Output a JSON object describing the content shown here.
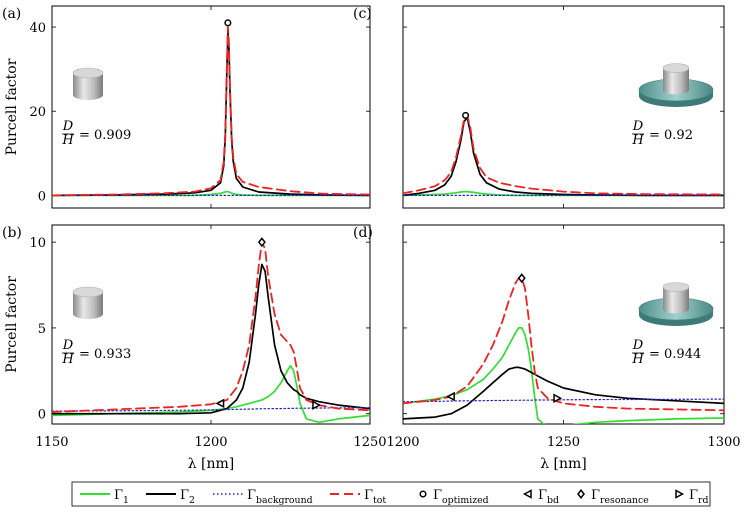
{
  "colors": {
    "gamma1": "#33dd33",
    "gamma2": "#000000",
    "background": "#2222cc",
    "tot": "#ee2222",
    "substrate": "#7fb8b4",
    "pillar": "#cfcfcf"
  },
  "chart_data": [
    {
      "id": "a",
      "type": "line",
      "panel_label": "(a)",
      "ylabel": "Purcell factor",
      "xlabel": "",
      "xlim": [
        1150,
        1250
      ],
      "ylim": [
        -3,
        45
      ],
      "yticks": [
        "0",
        "20",
        "40"
      ],
      "xticks": [],
      "ratio_label": "= 0.909",
      "ratio_frac": {
        "num": "D",
        "den": "H"
      },
      "icon": "cylinder-icon",
      "x": [
        1150,
        1170,
        1185,
        1195,
        1200,
        1203,
        1204,
        1204.5,
        1205,
        1205.3,
        1205.6,
        1206,
        1206.5,
        1207,
        1208,
        1210,
        1215,
        1225,
        1235,
        1250
      ],
      "series": [
        {
          "name": "Γ1",
          "values": [
            0,
            0,
            0,
            0,
            0.2,
            0.5,
            0.7,
            0.8,
            0.9,
            0.9,
            0.8,
            0.7,
            0.5,
            0.4,
            0.2,
            0.1,
            0,
            0,
            0,
            0
          ]
        },
        {
          "name": "Γ2",
          "values": [
            0,
            0.1,
            0.3,
            0.6,
            1.2,
            3,
            7,
            14,
            30,
            39,
            36,
            24,
            13,
            8,
            4,
            2,
            0.8,
            0.3,
            0.1,
            0
          ]
        },
        {
          "name": "Γbackground",
          "values": [
            0,
            0,
            0,
            0,
            0,
            0,
            0,
            0,
            0,
            0,
            0,
            0,
            0,
            0,
            0,
            0,
            0,
            0,
            0,
            0
          ]
        },
        {
          "name": "Γtot",
          "values": [
            0,
            0.2,
            0.5,
            0.9,
            1.7,
            3.6,
            8,
            15,
            31,
            40,
            37,
            25,
            14,
            9,
            5,
            3.2,
            2,
            1,
            0.4,
            0.2
          ]
        }
      ],
      "markers": [
        {
          "name": "Γoptimized",
          "x": 1205.3,
          "y": 41
        }
      ]
    },
    {
      "id": "b",
      "type": "line",
      "panel_label": "(b)",
      "ylabel": "Purcell factor",
      "xlabel": "λ [nm]",
      "xlim": [
        1150,
        1250
      ],
      "ylim": [
        -0.6,
        11
      ],
      "yticks": [
        "0",
        "5",
        "10"
      ],
      "xticks": [
        "1150",
        "1200",
        "1250"
      ],
      "ratio_label": "= 0.933",
      "ratio_frac": {
        "num": "D",
        "den": "H"
      },
      "icon": "cylinder-icon",
      "x": [
        1150,
        1170,
        1190,
        1200,
        1205,
        1208,
        1210,
        1212,
        1214,
        1215,
        1216,
        1217,
        1218,
        1220,
        1222,
        1224,
        1225,
        1226,
        1227,
        1228,
        1230,
        1234,
        1240,
        1250
      ],
      "series": [
        {
          "name": "Γ1",
          "values": [
            -0.1,
            0,
            0.1,
            0.2,
            0.3,
            0.4,
            0.5,
            0.6,
            0.7,
            0.75,
            0.8,
            0.9,
            1,
            1.3,
            1.8,
            2.5,
            2.8,
            2.5,
            1.6,
            0.6,
            -0.3,
            -0.5,
            -0.3,
            -0.1
          ]
        },
        {
          "name": "Γ2",
          "values": [
            0,
            0,
            0,
            0.05,
            0.3,
            0.8,
            1.5,
            3,
            5.8,
            7.5,
            8.7,
            8.3,
            6.8,
            4,
            2.5,
            1.8,
            1.6,
            1.4,
            1.3,
            1.1,
            0.9,
            0.7,
            0.5,
            0.3
          ]
        },
        {
          "name": "Γbackground",
          "values": [
            0.15,
            0.17,
            0.2,
            0.22,
            0.24,
            0.25,
            0.26,
            0.27,
            0.28,
            0.28,
            0.29,
            0.29,
            0.29,
            0.3,
            0.3,
            0.31,
            0.31,
            0.31,
            0.32,
            0.32,
            0.32,
            0.33,
            0.34,
            0.35
          ]
        },
        {
          "name": "Γtot",
          "values": [
            0.1,
            0.25,
            0.4,
            0.55,
            0.8,
            1.5,
            2.5,
            4,
            6.8,
            8.6,
            10,
            9.6,
            8,
            5.8,
            4.6,
            4.2,
            4,
            3.6,
            2.6,
            1.5,
            0.8,
            0.5,
            0.3,
            0.2
          ]
        }
      ],
      "markers": [
        {
          "name": "Γbd",
          "x": 1203,
          "y": 0.6
        },
        {
          "name": "Γresonance",
          "x": 1216,
          "y": 10
        },
        {
          "name": "Γrd",
          "x": 1233,
          "y": 0.5
        }
      ]
    },
    {
      "id": "c",
      "type": "line",
      "panel_label": "(c)",
      "ylabel": "",
      "xlabel": "",
      "xlim": [
        1200,
        1300
      ],
      "ylim": [
        -3,
        45
      ],
      "yticks": [],
      "xticks": [],
      "ratio_label": "= 0.92",
      "ratio_frac": {
        "num": "D",
        "den": "H"
      },
      "icon": "pillar-on-substrate-icon",
      "x": [
        1200,
        1205,
        1210,
        1213,
        1215,
        1216.5,
        1218,
        1219,
        1220,
        1221,
        1222,
        1224,
        1226,
        1230,
        1235,
        1240,
        1250,
        1260,
        1275,
        1300
      ],
      "series": [
        {
          "name": "Γ1",
          "values": [
            0,
            0.1,
            0.2,
            0.3,
            0.5,
            0.6,
            0.8,
            0.9,
            0.9,
            0.8,
            0.7,
            0.5,
            0.3,
            0.1,
            0,
            0,
            0,
            0,
            0,
            0
          ]
        },
        {
          "name": "Γ2",
          "values": [
            0,
            0.5,
            1.2,
            2.5,
            4.5,
            8,
            13,
            17.5,
            18.5,
            15,
            10,
            5,
            3,
            1.5,
            0.8,
            0.5,
            0.2,
            0.1,
            0,
            0
          ]
        },
        {
          "name": "Γbackground",
          "values": [
            0,
            0,
            0,
            0,
            0,
            0,
            0,
            0,
            0,
            0,
            0,
            0,
            0,
            0,
            0,
            0,
            0,
            0,
            0,
            0
          ]
        },
        {
          "name": "Γtot",
          "values": [
            0.5,
            1.2,
            2.2,
            3.6,
            5.5,
            9,
            14,
            18,
            19,
            16,
            11,
            6.5,
            4.3,
            3,
            2.2,
            1.6,
            0.9,
            0.5,
            0.3,
            0.2
          ]
        }
      ],
      "markers": [
        {
          "name": "Γoptimized",
          "x": 1219.5,
          "y": 19
        }
      ]
    },
    {
      "id": "d",
      "type": "line",
      "panel_label": "(d)",
      "ylabel": "",
      "xlabel": "λ [nm]",
      "xlim": [
        1200,
        1300
      ],
      "ylim": [
        -0.6,
        11
      ],
      "yticks": [],
      "xticks": [
        "1200",
        "1250",
        "1300"
      ],
      "ratio_label": "= 0.944",
      "ratio_frac": {
        "num": "D",
        "den": "H"
      },
      "icon": "pillar-on-substrate-icon",
      "x": [
        1200,
        1210,
        1215,
        1220,
        1225,
        1228,
        1231,
        1233,
        1235,
        1236,
        1237,
        1238,
        1239,
        1240,
        1241,
        1242,
        1245,
        1250,
        1260,
        1270,
        1285,
        1300
      ],
      "series": [
        {
          "name": "Γ1",
          "values": [
            0.6,
            0.85,
            1.05,
            1.4,
            2,
            2.6,
            3.3,
            4,
            4.7,
            5,
            5,
            4.6,
            3.8,
            2.6,
            1,
            -0.3,
            -0.8,
            -0.7,
            -0.5,
            -0.4,
            -0.3,
            -0.25
          ]
        },
        {
          "name": "Γ2",
          "values": [
            -0.3,
            -0.2,
            0,
            0.5,
            1.3,
            1.8,
            2.3,
            2.6,
            2.7,
            2.7,
            2.65,
            2.6,
            2.5,
            2.4,
            2.3,
            2.2,
            1.9,
            1.5,
            1.1,
            0.9,
            0.75,
            0.6
          ]
        },
        {
          "name": "Γbackground",
          "values": [
            0.7,
            0.72,
            0.74,
            0.75,
            0.76,
            0.77,
            0.77,
            0.78,
            0.78,
            0.78,
            0.79,
            0.79,
            0.79,
            0.79,
            0.8,
            0.8,
            0.8,
            0.81,
            0.82,
            0.83,
            0.84,
            0.85
          ]
        },
        {
          "name": "Γtot",
          "values": [
            0.6,
            0.8,
            1,
            1.6,
            2.9,
            4,
            5.4,
            6.6,
            7.6,
            7.9,
            7.9,
            7.3,
            5.8,
            4,
            2.5,
            1.5,
            0.9,
            0.6,
            0.4,
            0.3,
            0.25,
            0.2
          ]
        }
      ],
      "markers": [
        {
          "name": "Γbd",
          "x": 1215,
          "y": 1
        },
        {
          "name": "Γresonance",
          "x": 1237,
          "y": 7.9
        },
        {
          "name": "Γrd",
          "x": 1248,
          "y": 0.9
        }
      ]
    }
  ],
  "legend": [
    {
      "key": "gamma1",
      "base": "Γ",
      "sub": "1",
      "style": "solid-green"
    },
    {
      "key": "gamma2",
      "base": "Γ",
      "sub": "2",
      "style": "solid-black"
    },
    {
      "key": "background",
      "base": "Γ",
      "sub": "background",
      "style": "dotted-blue"
    },
    {
      "key": "tot",
      "base": "Γ",
      "sub": "tot",
      "style": "dashed-red"
    },
    {
      "key": "optimized",
      "base": "Γ",
      "sub": "optimized",
      "style": "marker-circle"
    },
    {
      "key": "bd",
      "base": "Γ",
      "sub": "bd",
      "style": "marker-left-triangle"
    },
    {
      "key": "resonance",
      "base": "Γ",
      "sub": "resonance",
      "style": "marker-diamond"
    },
    {
      "key": "rd",
      "base": "Γ",
      "sub": "rd",
      "style": "marker-right-triangle"
    }
  ]
}
